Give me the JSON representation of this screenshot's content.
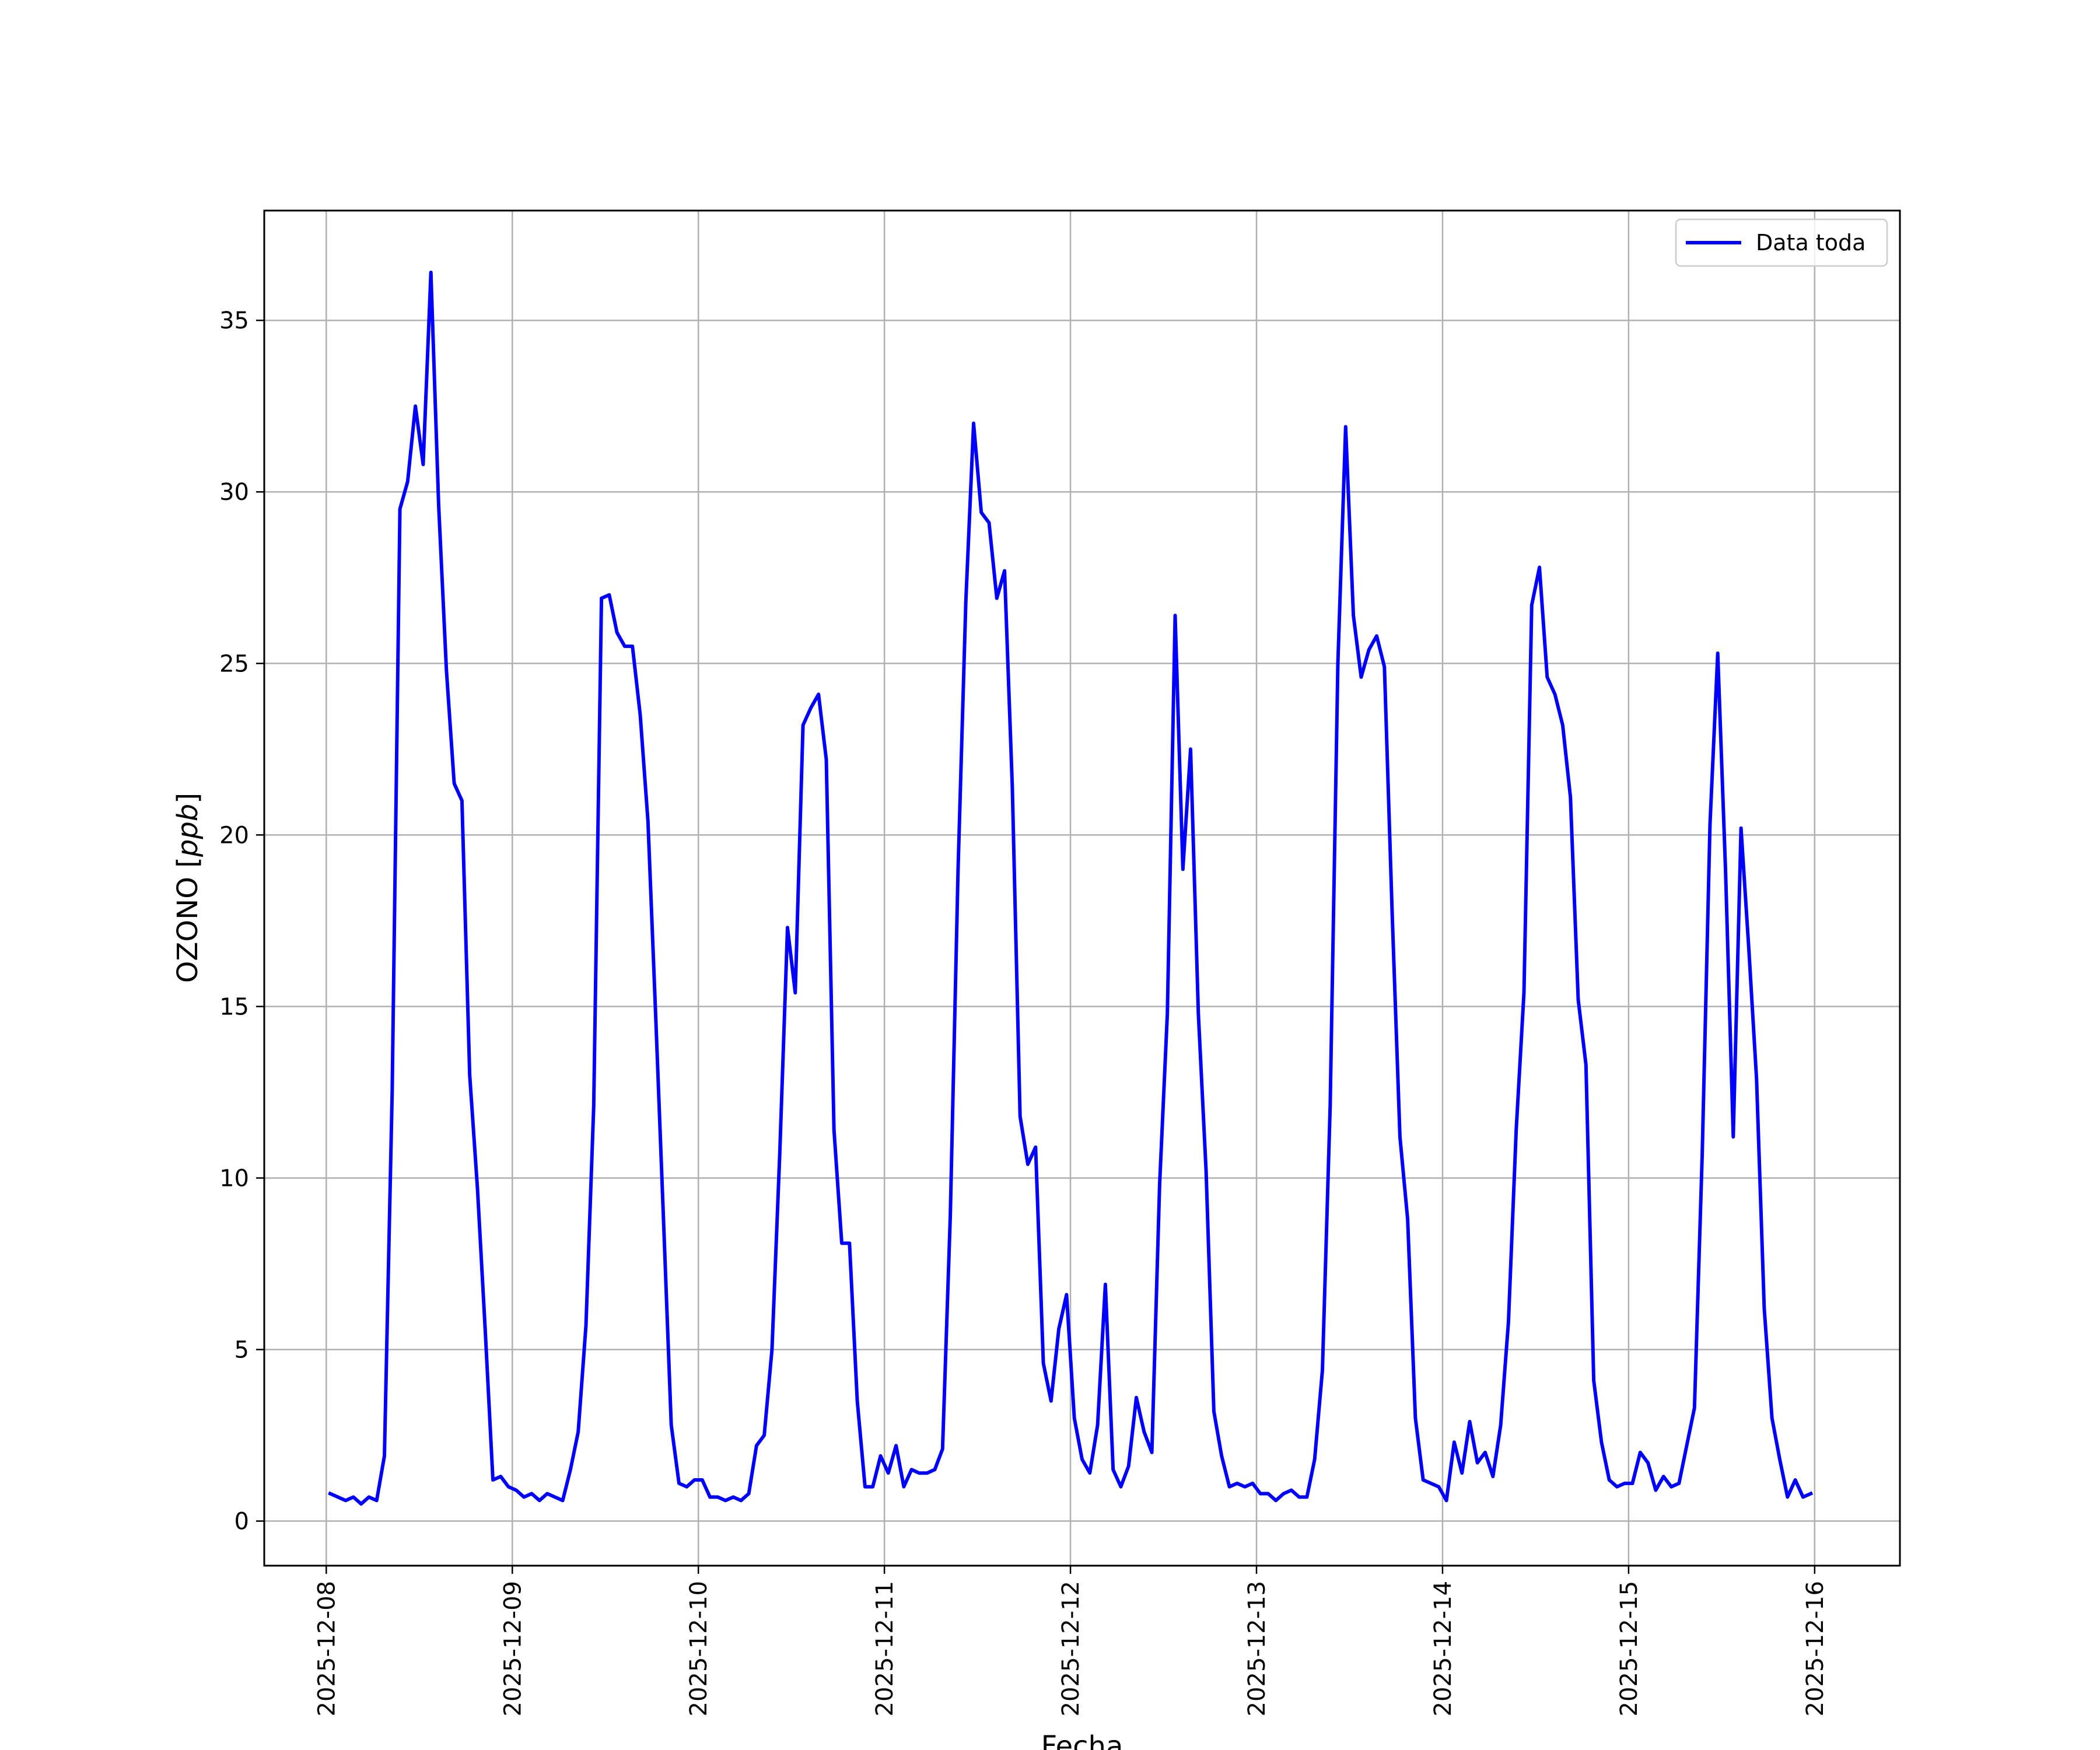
{
  "chart_data": {
    "type": "line",
    "xlabel": "Fecha",
    "ylabel": "OZONO [",
    "ylabel_unit": "ppb",
    "ylabel_close": "]",
    "x_tick_labels": [
      "2025-12-08",
      "2025-12-09",
      "2025-12-10",
      "2025-12-11",
      "2025-12-12",
      "2025-12-13",
      "2025-12-14",
      "2025-12-15",
      "2025-12-16"
    ],
    "y_ticks": [
      0,
      5,
      10,
      15,
      20,
      25,
      30,
      35
    ],
    "xlim": [
      "2025-12-07 16:00",
      "2025-12-16 11:00"
    ],
    "ylim": [
      -1.3,
      38.2
    ],
    "grid": true,
    "legend_position": "upper right",
    "series": [
      {
        "name": "Data toda",
        "color": "#0000ff",
        "x_start": "2025-12-08 00:30",
        "x_step_hours": 1,
        "values": [
          0.8,
          0.7,
          0.6,
          0.7,
          0.5,
          0.7,
          0.6,
          1.9,
          12.5,
          29.5,
          30.3,
          32.5,
          30.8,
          36.4,
          29.6,
          24.8,
          21.5,
          21.0,
          13.0,
          9.7,
          5.6,
          1.2,
          1.3,
          1.0,
          0.9,
          0.7,
          0.8,
          0.6,
          0.8,
          0.7,
          0.6,
          1.5,
          2.6,
          5.7,
          12.1,
          26.9,
          27.0,
          25.9,
          25.5,
          25.5,
          23.5,
          20.4,
          14.7,
          8.8,
          2.8,
          1.1,
          1.0,
          1.2,
          1.2,
          0.7,
          0.7,
          0.6,
          0.7,
          0.6,
          0.8,
          2.2,
          2.5,
          5.0,
          10.7,
          17.3,
          15.4,
          23.2,
          23.7,
          24.1,
          22.2,
          11.4,
          8.1,
          8.1,
          3.5,
          1.0,
          1.0,
          1.9,
          1.4,
          2.2,
          1.0,
          1.5,
          1.4,
          1.4,
          1.5,
          2.1,
          8.9,
          19.0,
          26.8,
          32.0,
          29.4,
          29.1,
          26.9,
          27.7,
          21.4,
          11.8,
          10.4,
          10.9,
          4.6,
          3.5,
          5.6,
          6.6,
          3.0,
          1.8,
          1.4,
          2.8,
          6.9,
          1.5,
          1.0,
          1.6,
          3.6,
          2.6,
          2.0,
          9.8,
          14.8,
          26.4,
          19.0,
          22.5,
          14.8,
          10.2,
          3.2,
          1.9,
          1.0,
          1.1,
          1.0,
          1.1,
          0.8,
          0.8,
          0.6,
          0.8,
          0.9,
          0.7,
          0.7,
          1.8,
          4.4,
          12.1,
          25.0,
          31.9,
          26.4,
          24.6,
          25.4,
          25.8,
          24.9,
          17.7,
          11.2,
          8.8,
          3.0,
          1.2,
          1.1,
          1.0,
          0.6,
          2.3,
          1.4,
          2.9,
          1.7,
          2.0,
          1.3,
          2.8,
          5.8,
          11.4,
          15.4,
          26.7,
          27.8,
          24.6,
          24.1,
          23.2,
          21.1,
          15.2,
          13.3,
          4.1,
          2.3,
          1.2,
          1.0,
          1.1,
          1.1,
          2.0,
          1.7,
          0.9,
          1.3,
          1.0,
          1.1,
          2.2,
          3.3,
          10.7,
          20.3,
          25.3,
          19.0,
          11.2,
          20.2,
          16.7,
          12.9,
          6.2,
          3.0,
          1.8,
          0.7,
          1.2,
          0.7,
          0.8
        ]
      }
    ]
  }
}
